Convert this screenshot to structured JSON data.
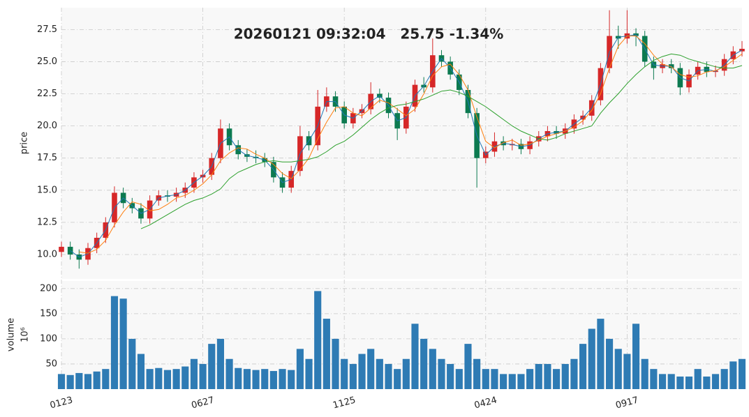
{
  "chart_data": {
    "type": "candlestick",
    "title": "20260121 09:32:04   25.75 -1.34%",
    "ylabel": "price",
    "categories": [
      "0123",
      null,
      null,
      null,
      null,
      null,
      null,
      null,
      null,
      null,
      null,
      null,
      null,
      null,
      null,
      null,
      "0627",
      null,
      null,
      null,
      null,
      null,
      null,
      null,
      null,
      null,
      null,
      null,
      null,
      null,
      null,
      null,
      "1125",
      null,
      null,
      null,
      null,
      null,
      null,
      null,
      null,
      null,
      null,
      null,
      null,
      null,
      null,
      null,
      "0424",
      null,
      null,
      null,
      null,
      null,
      null,
      null,
      null,
      null,
      null,
      null,
      null,
      null,
      null,
      null,
      "0917",
      null,
      null,
      null,
      null,
      null,
      null,
      null,
      null,
      null,
      null,
      null,
      null,
      null
    ],
    "ohlc": [
      [
        10.2,
        11.0,
        9.8,
        10.6
      ],
      [
        10.6,
        11.0,
        9.6,
        10.0
      ],
      [
        10.0,
        10.4,
        8.9,
        9.6
      ],
      [
        9.6,
        10.9,
        9.2,
        10.5
      ],
      [
        10.5,
        11.7,
        10.1,
        11.3
      ],
      [
        11.3,
        12.9,
        10.9,
        12.5
      ],
      [
        12.5,
        15.3,
        12.1,
        14.8
      ],
      [
        14.8,
        15.2,
        13.6,
        14.0
      ],
      [
        14.0,
        14.4,
        13.2,
        13.6
      ],
      [
        13.6,
        14.0,
        12.4,
        12.8
      ],
      [
        12.8,
        14.6,
        12.4,
        14.2
      ],
      [
        14.2,
        15.0,
        13.8,
        14.6
      ],
      [
        14.6,
        15.0,
        14.1,
        14.5
      ],
      [
        14.5,
        15.2,
        14.1,
        14.8
      ],
      [
        14.8,
        15.6,
        14.4,
        15.2
      ],
      [
        15.2,
        16.4,
        14.8,
        16.0
      ],
      [
        16.0,
        16.6,
        15.6,
        16.2
      ],
      [
        16.2,
        17.9,
        15.8,
        17.5
      ],
      [
        17.5,
        20.5,
        17.1,
        19.8
      ],
      [
        19.8,
        20.2,
        18.1,
        18.5
      ],
      [
        18.5,
        18.9,
        17.4,
        17.8
      ],
      [
        17.8,
        18.2,
        17.2,
        17.6
      ],
      [
        17.6,
        18.1,
        17.1,
        17.5
      ],
      [
        17.5,
        17.9,
        16.8,
        17.2
      ],
      [
        17.2,
        17.6,
        15.6,
        16.0
      ],
      [
        16.0,
        16.4,
        14.8,
        15.2
      ],
      [
        15.2,
        16.9,
        14.8,
        16.5
      ],
      [
        16.5,
        20.0,
        16.1,
        19.2
      ],
      [
        19.2,
        19.6,
        18.1,
        18.5
      ],
      [
        18.5,
        22.8,
        18.1,
        21.5
      ],
      [
        21.5,
        23.0,
        21.1,
        22.3
      ],
      [
        22.3,
        22.7,
        21.1,
        21.5
      ],
      [
        21.5,
        21.9,
        19.8,
        20.2
      ],
      [
        20.2,
        21.4,
        19.8,
        21.0
      ],
      [
        21.0,
        21.7,
        20.6,
        21.3
      ],
      [
        21.3,
        23.4,
        20.9,
        22.5
      ],
      [
        22.5,
        22.9,
        21.8,
        22.2
      ],
      [
        22.2,
        22.6,
        20.6,
        21.0
      ],
      [
        21.0,
        21.4,
        18.9,
        19.8
      ],
      [
        19.8,
        21.9,
        19.4,
        21.5
      ],
      [
        21.5,
        23.6,
        21.1,
        23.2
      ],
      [
        23.2,
        23.8,
        22.6,
        23.0
      ],
      [
        23.0,
        26.8,
        22.6,
        25.5
      ],
      [
        25.5,
        25.9,
        24.6,
        25.0
      ],
      [
        25.0,
        25.4,
        23.6,
        24.0
      ],
      [
        24.0,
        24.4,
        22.4,
        22.8
      ],
      [
        22.8,
        23.2,
        20.6,
        21.0
      ],
      [
        21.0,
        21.4,
        15.2,
        17.5
      ],
      [
        17.5,
        18.4,
        17.1,
        18.0
      ],
      [
        18.0,
        19.5,
        17.6,
        18.8
      ],
      [
        18.8,
        19.2,
        18.1,
        18.5
      ],
      [
        18.5,
        19.0,
        18.1,
        18.6
      ],
      [
        18.6,
        19.0,
        17.8,
        18.2
      ],
      [
        18.2,
        19.2,
        17.8,
        18.8
      ],
      [
        18.8,
        19.6,
        18.4,
        19.2
      ],
      [
        19.2,
        20.0,
        18.8,
        19.6
      ],
      [
        19.6,
        20.0,
        19.0,
        19.4
      ],
      [
        19.4,
        20.2,
        19.0,
        19.8
      ],
      [
        19.8,
        20.9,
        19.4,
        20.5
      ],
      [
        20.5,
        21.2,
        20.1,
        20.8
      ],
      [
        20.8,
        22.4,
        20.4,
        22.0
      ],
      [
        22.0,
        24.9,
        21.6,
        24.5
      ],
      [
        24.5,
        29.0,
        24.1,
        27.0
      ],
      [
        27.0,
        27.8,
        26.0,
        26.8
      ],
      [
        26.8,
        29.0,
        26.4,
        27.2
      ],
      [
        27.2,
        27.6,
        26.2,
        27.0
      ],
      [
        27.0,
        27.4,
        24.6,
        25.0
      ],
      [
        25.0,
        25.4,
        23.6,
        24.5
      ],
      [
        24.5,
        25.2,
        24.1,
        24.8
      ],
      [
        24.8,
        25.2,
        24.1,
        24.5
      ],
      [
        24.5,
        24.9,
        22.4,
        23.0
      ],
      [
        23.0,
        24.4,
        22.6,
        24.0
      ],
      [
        24.0,
        25.0,
        23.6,
        24.6
      ],
      [
        24.6,
        25.0,
        23.8,
        24.2
      ],
      [
        24.2,
        24.7,
        23.8,
        24.3
      ],
      [
        24.3,
        25.6,
        23.9,
        25.2
      ],
      [
        25.2,
        26.2,
        24.8,
        25.8
      ],
      [
        25.8,
        26.6,
        25.4,
        26.0
      ]
    ],
    "up_color": "#d62728",
    "down_color": "#0c7a50",
    "series": [
      {
        "color": "#1f77b4",
        "values": [
          null,
          10.3,
          9.8,
          10.05,
          10.9,
          11.9,
          13.65,
          14.4,
          13.8,
          13.2,
          13.5,
          14.4,
          14.55,
          14.65,
          15.0,
          15.6,
          16.1,
          16.85,
          18.65,
          19.15,
          18.15,
          17.7,
          17.55,
          17.35,
          16.6,
          15.6,
          15.85,
          17.85,
          18.85,
          20.0,
          21.9,
          21.9,
          20.85,
          20.6,
          21.15,
          21.9,
          22.35,
          21.6,
          20.4,
          20.65,
          22.35,
          23.1,
          24.25,
          25.25,
          24.5,
          23.4,
          21.9,
          19.25,
          17.75,
          18.4,
          18.65,
          18.55,
          18.4,
          18.5,
          19.0,
          19.4,
          19.5,
          19.6,
          20.15,
          20.65,
          21.4,
          23.25,
          25.75,
          26.9,
          27.0,
          27.1,
          26.0,
          24.75,
          24.65,
          24.65,
          23.75,
          23.5,
          24.3,
          24.4,
          24.25,
          24.75,
          25.5,
          25.9
        ]
      },
      {
        "color": "#ff7f0e",
        "values": [
          null,
          null,
          10.2,
          10.1,
          10.4,
          11.1,
          12.3,
          13.3,
          14.1,
          13.9,
          13.4,
          13.5,
          13.9,
          14.4,
          14.6,
          15.0,
          15.5,
          16.2,
          17.3,
          17.9,
          18.3,
          18.2,
          17.8,
          17.5,
          17.0,
          16.3,
          15.9,
          16.6,
          17.5,
          19.0,
          20.3,
          21.4,
          21.5,
          21.0,
          20.8,
          21.4,
          22.0,
          21.8,
          21.3,
          20.8,
          21.3,
          22.5,
          23.9,
          24.6,
          24.8,
          24.0,
          22.8,
          20.7,
          18.8,
          18.3,
          18.7,
          18.9,
          18.5,
          18.6,
          18.9,
          19.2,
          19.4,
          19.6,
          19.9,
          20.4,
          21.2,
          22.5,
          24.5,
          26.2,
          27.0,
          27.0,
          26.4,
          25.5,
          24.8,
          24.6,
          24.0,
          23.8,
          23.9,
          24.2,
          24.3,
          24.6,
          25.1,
          25.6
        ]
      },
      {
        "color": "#2ca02c",
        "values": [
          null,
          null,
          null,
          null,
          null,
          null,
          null,
          null,
          null,
          12.0,
          12.3,
          12.7,
          13.1,
          13.5,
          13.9,
          14.2,
          14.4,
          14.7,
          15.1,
          15.9,
          16.4,
          16.7,
          17.0,
          17.2,
          17.3,
          17.2,
          17.2,
          17.3,
          17.4,
          17.6,
          18.0,
          18.5,
          18.8,
          19.3,
          19.9,
          20.5,
          21.0,
          21.4,
          21.6,
          21.7,
          21.9,
          22.1,
          22.4,
          22.7,
          22.8,
          22.6,
          22.3,
          21.9,
          21.5,
          21.0,
          20.5,
          20.0,
          19.6,
          19.3,
          19.0,
          18.9,
          19.1,
          19.4,
          19.6,
          19.8,
          20.0,
          21.0,
          21.8,
          22.5,
          23.3,
          24.0,
          24.6,
          25.1,
          25.4,
          25.6,
          25.5,
          25.2,
          25.0,
          24.8,
          24.6,
          24.5,
          24.5,
          24.7
        ]
      }
    ],
    "ylim": [
      8.1,
      29.2
    ],
    "yticks": [
      {
        "value": 10,
        "label": "10.0"
      },
      12.5,
      {
        "value": 15,
        "label": "15.0"
      },
      17.5,
      {
        "value": 20,
        "label": "20.0"
      },
      22.5,
      {
        "value": 25,
        "label": "25.0"
      },
      27.5
    ],
    "volume_label": "volume",
    "volume_exponent": "10⁶",
    "volume": [
      30,
      28,
      32,
      30,
      35,
      40,
      185,
      180,
      100,
      70,
      40,
      42,
      38,
      40,
      45,
      60,
      50,
      90,
      100,
      60,
      42,
      40,
      38,
      40,
      36,
      40,
      38,
      80,
      60,
      195,
      140,
      100,
      60,
      50,
      70,
      80,
      60,
      50,
      40,
      60,
      130,
      100,
      80,
      60,
      50,
      40,
      90,
      60,
      40,
      40,
      30,
      30,
      30,
      40,
      50,
      50,
      40,
      50,
      60,
      90,
      120,
      140,
      100,
      80,
      70,
      130,
      60,
      40,
      30,
      30,
      25,
      25,
      40,
      25,
      30,
      40,
      55,
      60
    ],
    "volume_color": "#2e7bb4",
    "volume_ylim": [
      0,
      215
    ],
    "volume_yticks": [
      50,
      100,
      150,
      200
    ],
    "grid": true
  }
}
